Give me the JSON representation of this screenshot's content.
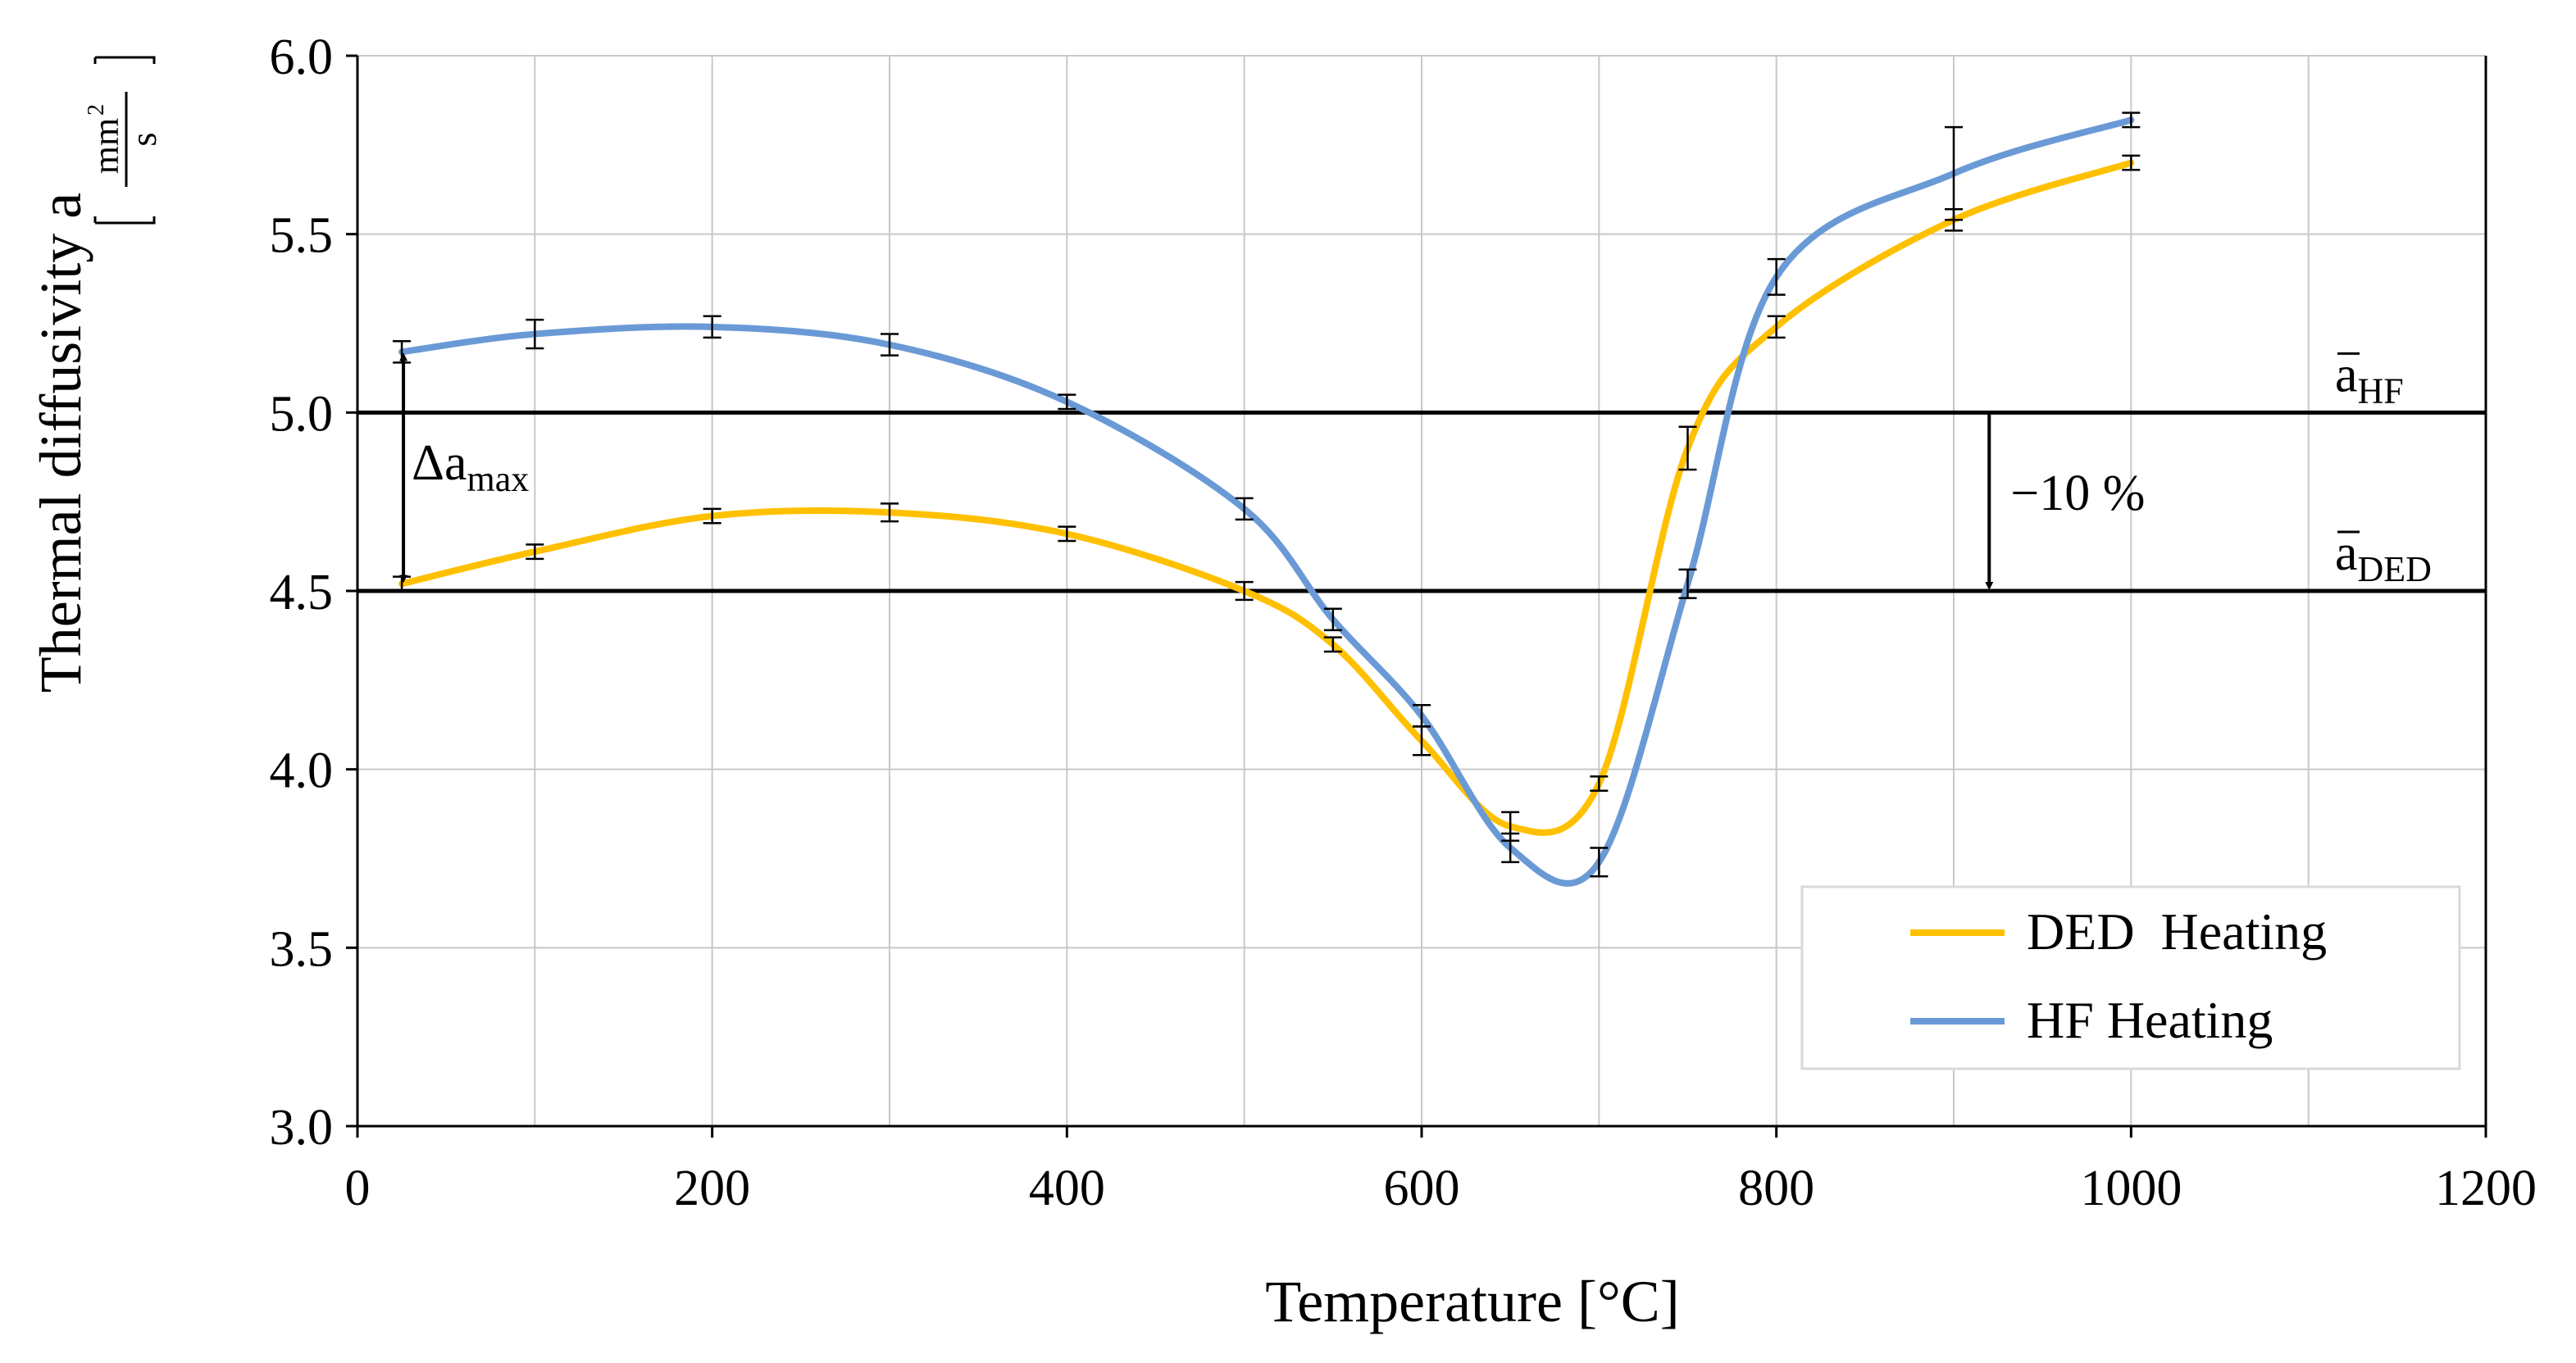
{
  "chart_data": {
    "type": "line",
    "title": "",
    "xlabel": "Temperature [°C]",
    "ylabel": {
      "text": "Thermal diffusivity a",
      "unit_numerator": "mm",
      "unit_exponent": "2",
      "unit_denominator": "s"
    },
    "xlim": [
      0,
      1200
    ],
    "ylim": [
      3.0,
      6.0
    ],
    "x_ticks": [
      0,
      200,
      400,
      600,
      800,
      1000,
      1200
    ],
    "x_tick_labels": [
      "0",
      "200",
      "400",
      "600",
      "800",
      "1000",
      "1200"
    ],
    "x_grid_step": 100,
    "y_ticks": [
      3.0,
      3.5,
      4.0,
      4.5,
      5.0,
      5.5,
      6.0
    ],
    "y_tick_labels": [
      "3.0",
      "3.5",
      "4.0",
      "4.5",
      "5.0",
      "5.5",
      "6.0"
    ],
    "grid": true,
    "legend_position": "bottom-right",
    "series": [
      {
        "name": "DED  Heating",
        "color": "#FFC000",
        "x": [
          25,
          100,
          200,
          300,
          400,
          500,
          550,
          600,
          650,
          700,
          750,
          800,
          900,
          1000
        ],
        "y": [
          4.52,
          4.61,
          4.71,
          4.72,
          4.66,
          4.5,
          4.35,
          4.08,
          3.84,
          3.96,
          4.9,
          5.24,
          5.54,
          5.7
        ],
        "err": [
          0.02,
          0.02,
          0.02,
          0.025,
          0.02,
          0.025,
          0.02,
          0.04,
          0.04,
          0.02,
          0.06,
          0.03,
          0.03,
          0.02
        ]
      },
      {
        "name": "HF Heating",
        "color": "#6A9AD6",
        "x": [
          25,
          100,
          200,
          300,
          400,
          500,
          550,
          600,
          650,
          700,
          750,
          800,
          900,
          1000
        ],
        "y": [
          5.17,
          5.22,
          5.24,
          5.19,
          5.03,
          4.73,
          4.42,
          4.15,
          3.78,
          3.74,
          4.52,
          5.38,
          5.67,
          5.82
        ],
        "err": [
          0.03,
          0.04,
          0.03,
          0.03,
          0.02,
          0.03,
          0.03,
          0.03,
          0.04,
          0.04,
          0.04,
          0.05,
          0.13,
          0.02
        ]
      }
    ],
    "reference_lines": [
      {
        "name": "mean_HF",
        "y": 5.0,
        "label_main": "a",
        "label_sub": "HF"
      },
      {
        "name": "mean_DED",
        "y": 4.5,
        "label_main": "a",
        "label_sub": "DED"
      }
    ],
    "annotations": {
      "delta": {
        "x": 25,
        "y_from": 4.52,
        "y_to": 5.17,
        "label_main": "Δa",
        "label_sub": "max"
      },
      "drop": {
        "x": 920,
        "y_from": 5.0,
        "y_to": 4.5,
        "label": "−10 %"
      }
    }
  }
}
